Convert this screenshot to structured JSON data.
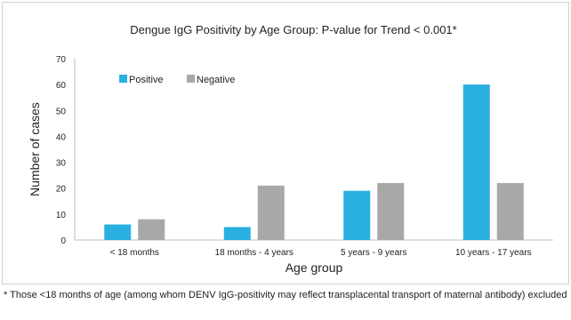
{
  "chart_data": {
    "type": "bar",
    "title": "Dengue IgG Positivity by Age Group:  P-value for Trend < 0.001*",
    "xlabel": "Age group",
    "ylabel": "Number of cases",
    "categories": [
      "< 18 months",
      "18 months - 4 years",
      "5 years - 9 years",
      "10 years - 17 years"
    ],
    "series": [
      {
        "name": "Positive",
        "color": "#2ab0e0",
        "values": [
          6,
          5,
          19,
          60
        ]
      },
      {
        "name": "Negative",
        "color": "#a8a8a8",
        "values": [
          8,
          21,
          22,
          22
        ]
      }
    ],
    "ylim": [
      0,
      70
    ],
    "yticks": [
      "0",
      "10",
      "20",
      "30",
      "40",
      "50",
      "60",
      "70"
    ],
    "legend_position": "top-left",
    "grid": false
  },
  "footnote": "* Those <18 months of age (among whom DENV IgG-positivity may reflect transplacental transport of maternal antibody) excluded"
}
